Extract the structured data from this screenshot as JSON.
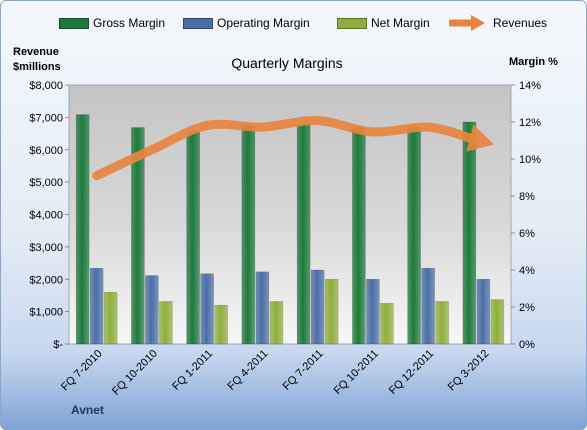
{
  "legend": [
    {
      "label": "Gross Margin",
      "color": "#1e7a3c",
      "kind": "bar"
    },
    {
      "label": "Operating Margin",
      "color": "#4a6fa5",
      "kind": "bar"
    },
    {
      "label": "Net Margin",
      "color": "#8fae3c",
      "kind": "bar"
    },
    {
      "label": "Revenues",
      "color": "#e8843e",
      "kind": "arrow"
    }
  ],
  "company": "Avnet",
  "chart_data": {
    "type": "bar",
    "title": "Quarterly Margins",
    "categories": [
      "FQ 7-2010",
      "FQ 10-2010",
      "FQ 1-2011",
      "FQ 4-2011",
      "FQ 7-2011",
      "FQ 10-2011",
      "FQ 12-2011",
      "FQ 3-2012"
    ],
    "y_left": {
      "label_lines": [
        "Revenue",
        "$millions"
      ],
      "ylim": [
        0,
        8000
      ],
      "ticks": [
        0,
        1000,
        2000,
        3000,
        4000,
        5000,
        6000,
        7000,
        8000
      ],
      "tick_labels": [
        "$-",
        "$1,000",
        "$2,000",
        "$3,000",
        "$4,000",
        "$5,000",
        "$6,000",
        "$7,000",
        "$8,000"
      ]
    },
    "y_right": {
      "label": "Margin %",
      "ylim": [
        0,
        14
      ],
      "ticks": [
        0,
        2,
        4,
        6,
        8,
        10,
        12,
        14
      ],
      "tick_labels": [
        "0%",
        "2%",
        "4%",
        "6%",
        "8%",
        "10%",
        "12%",
        "14%"
      ]
    },
    "series": [
      {
        "name": "Gross Margin",
        "axis": "right",
        "color": "#1e7a3c",
        "values": [
          12.4,
          11.7,
          11.5,
          11.8,
          11.9,
          11.7,
          11.7,
          12.0
        ]
      },
      {
        "name": "Operating Margin",
        "axis": "right",
        "color": "#4a6fa5",
        "values": [
          4.1,
          3.7,
          3.8,
          3.9,
          4.0,
          3.5,
          4.1,
          3.5
        ]
      },
      {
        "name": "Net Margin",
        "axis": "right",
        "color": "#8fae3c",
        "values": [
          2.8,
          2.3,
          2.1,
          2.3,
          3.5,
          2.2,
          2.3,
          2.4
        ]
      },
      {
        "name": "Revenues",
        "axis": "left",
        "type": "line",
        "color": "#e8843e",
        "values": [
          5200,
          6000,
          6750,
          6700,
          6900,
          6550,
          6700,
          6250
        ]
      }
    ],
    "grid": false,
    "legend_position": "top"
  }
}
